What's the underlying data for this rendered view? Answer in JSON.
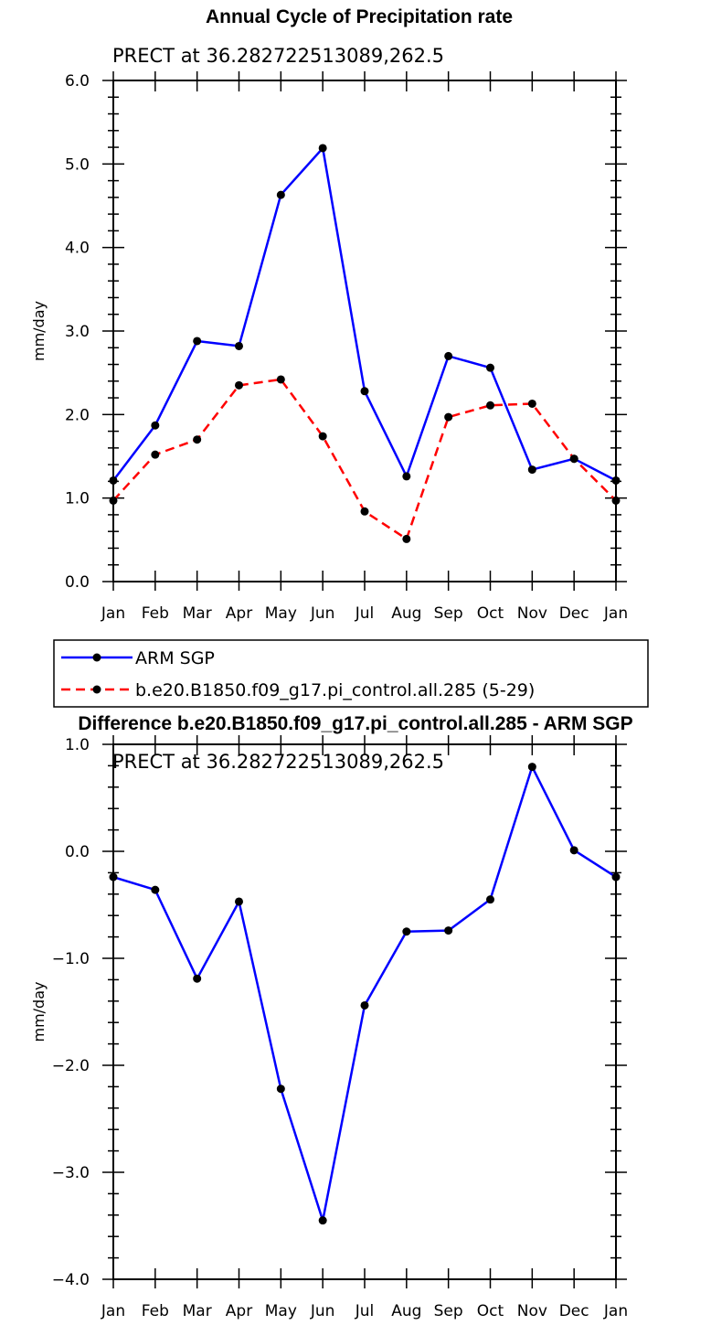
{
  "chart_data": [
    {
      "type": "line",
      "title": "Annual Cycle of Precipitation rate",
      "subtitle": "PRECT at 36.282722513089,262.5",
      "ylabel": "mm/day",
      "ylim": [
        0,
        6
      ],
      "yticks": [
        "0.0",
        "1.0",
        "2.0",
        "3.0",
        "4.0",
        "5.0",
        "6.0"
      ],
      "categories": [
        "Jan",
        "Feb",
        "Mar",
        "Apr",
        "May",
        "Jun",
        "Jul",
        "Aug",
        "Sep",
        "Oct",
        "Nov",
        "Dec",
        "Jan"
      ],
      "series": [
        {
          "name": "ARM SGP",
          "color": "#0000ff",
          "dash": "solid",
          "values": [
            1.21,
            1.87,
            2.88,
            2.82,
            4.63,
            5.19,
            2.28,
            1.26,
            2.7,
            2.56,
            1.34,
            1.47,
            1.21
          ]
        },
        {
          "name": "b.e20.B1850.f09_g17.pi_control.all.285 (5-29)",
          "color": "#ff0000",
          "dash": "dashed",
          "values": [
            0.97,
            1.52,
            1.7,
            2.35,
            2.42,
            1.74,
            0.84,
            0.51,
            1.97,
            2.11,
            2.13,
            1.47,
            0.97
          ]
        }
      ],
      "legend": "below"
    },
    {
      "type": "line",
      "title": "Difference b.e20.B1850.f09_g17.pi_control.all.285 - ARM SGP",
      "subtitle": "PRECT at 36.282722513089,262.5",
      "ylabel": "mm/day",
      "ylim": [
        -4,
        1
      ],
      "yticks": [
        "−4.0",
        "−3.0",
        "−2.0",
        "−1.0",
        "0.0",
        "1.0"
      ],
      "categories": [
        "Jan",
        "Feb",
        "Mar",
        "Apr",
        "May",
        "Jun",
        "Jul",
        "Aug",
        "Sep",
        "Oct",
        "Nov",
        "Dec",
        "Jan"
      ],
      "series": [
        {
          "name": "",
          "color": "#0000ff",
          "dash": "solid",
          "values": [
            -0.24,
            -0.36,
            -1.19,
            -0.47,
            -2.22,
            -3.45,
            -1.44,
            -0.75,
            -0.74,
            -0.45,
            0.79,
            0.01,
            -0.24
          ]
        }
      ]
    }
  ]
}
